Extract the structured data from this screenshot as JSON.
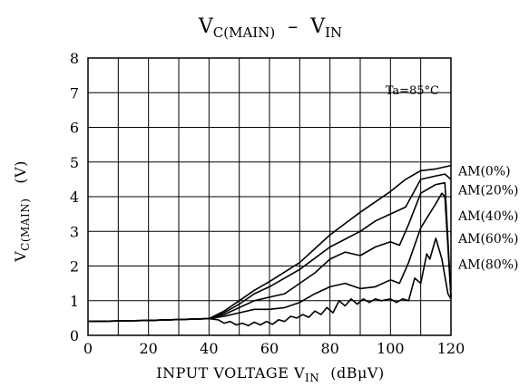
{
  "chart_data": {
    "type": "line",
    "title": {
      "main": "V",
      "main_sub": "C(MAIN)",
      "dash": "–",
      "second": "V",
      "second_sub": "IN"
    },
    "xlabel": {
      "main": "INPUT VOLTAGE V",
      "sub": "IN",
      "unit": "(dBμV)"
    },
    "ylabel": {
      "main": "V",
      "sub": "C(MAIN)",
      "unit": "(V)"
    },
    "annotation": "Ta=85°C",
    "xlim": [
      0,
      120
    ],
    "ylim": [
      0,
      8
    ],
    "xticks": [
      0,
      20,
      40,
      60,
      80,
      100,
      120
    ],
    "yticks": [
      0,
      1,
      2,
      3,
      4,
      5,
      6,
      7,
      8
    ],
    "grid": true,
    "series": [
      {
        "name": "AM(0%)",
        "points": [
          [
            0,
            0.4
          ],
          [
            20,
            0.43
          ],
          [
            40,
            0.48
          ],
          [
            45,
            0.7
          ],
          [
            50,
            1.0
          ],
          [
            55,
            1.3
          ],
          [
            60,
            1.55
          ],
          [
            70,
            2.1
          ],
          [
            80,
            2.9
          ],
          [
            90,
            3.55
          ],
          [
            100,
            4.15
          ],
          [
            105,
            4.5
          ],
          [
            110,
            4.75
          ],
          [
            115,
            4.8
          ],
          [
            120,
            4.9
          ]
        ]
      },
      {
        "name": "AM(20%)",
        "points": [
          [
            0,
            0.4
          ],
          [
            20,
            0.43
          ],
          [
            40,
            0.48
          ],
          [
            45,
            0.65
          ],
          [
            50,
            0.9
          ],
          [
            55,
            1.2
          ],
          [
            60,
            1.4
          ],
          [
            70,
            1.9
          ],
          [
            80,
            2.55
          ],
          [
            90,
            3.0
          ],
          [
            95,
            3.3
          ],
          [
            100,
            3.5
          ],
          [
            105,
            3.7
          ],
          [
            110,
            4.5
          ],
          [
            115,
            4.6
          ],
          [
            118,
            4.65
          ],
          [
            120,
            4.5
          ]
        ]
      },
      {
        "name": "AM(40%)",
        "points": [
          [
            0,
            0.4
          ],
          [
            20,
            0.43
          ],
          [
            40,
            0.48
          ],
          [
            45,
            0.6
          ],
          [
            50,
            0.8
          ],
          [
            55,
            1.0
          ],
          [
            60,
            1.1
          ],
          [
            65,
            1.2
          ],
          [
            70,
            1.5
          ],
          [
            75,
            1.8
          ],
          [
            80,
            2.2
          ],
          [
            85,
            2.4
          ],
          [
            90,
            2.3
          ],
          [
            95,
            2.55
          ],
          [
            100,
            2.7
          ],
          [
            103,
            2.6
          ],
          [
            106,
            3.2
          ],
          [
            110,
            4.1
          ],
          [
            115,
            4.35
          ],
          [
            118,
            4.4
          ],
          [
            120,
            1.1
          ]
        ]
      },
      {
        "name": "AM(60%)",
        "points": [
          [
            0,
            0.4
          ],
          [
            20,
            0.43
          ],
          [
            40,
            0.48
          ],
          [
            45,
            0.55
          ],
          [
            50,
            0.65
          ],
          [
            55,
            0.75
          ],
          [
            60,
            0.75
          ],
          [
            65,
            0.8
          ],
          [
            70,
            0.95
          ],
          [
            75,
            1.2
          ],
          [
            80,
            1.4
          ],
          [
            85,
            1.5
          ],
          [
            90,
            1.35
          ],
          [
            95,
            1.4
          ],
          [
            100,
            1.6
          ],
          [
            103,
            1.5
          ],
          [
            106,
            2.1
          ],
          [
            110,
            3.1
          ],
          [
            115,
            3.8
          ],
          [
            117,
            4.1
          ],
          [
            118,
            4.0
          ],
          [
            120,
            1.1
          ]
        ]
      },
      {
        "name": "AM(80%)",
        "points": [
          [
            0,
            0.4
          ],
          [
            20,
            0.43
          ],
          [
            40,
            0.48
          ],
          [
            43,
            0.45
          ],
          [
            45,
            0.35
          ],
          [
            47,
            0.4
          ],
          [
            49,
            0.3
          ],
          [
            51,
            0.35
          ],
          [
            53,
            0.28
          ],
          [
            55,
            0.38
          ],
          [
            57,
            0.3
          ],
          [
            59,
            0.4
          ],
          [
            61,
            0.32
          ],
          [
            63,
            0.45
          ],
          [
            65,
            0.4
          ],
          [
            67,
            0.55
          ],
          [
            69,
            0.5
          ],
          [
            71,
            0.6
          ],
          [
            73,
            0.52
          ],
          [
            75,
            0.7
          ],
          [
            77,
            0.6
          ],
          [
            79,
            0.8
          ],
          [
            81,
            0.65
          ],
          [
            83,
            1.0
          ],
          [
            85,
            0.85
          ],
          [
            87,
            1.05
          ],
          [
            89,
            0.9
          ],
          [
            91,
            1.05
          ],
          [
            93,
            0.95
          ],
          [
            95,
            1.05
          ],
          [
            97,
            1.0
          ],
          [
            100,
            1.05
          ],
          [
            102,
            0.95
          ],
          [
            104,
            1.05
          ],
          [
            106,
            1.0
          ],
          [
            108,
            1.65
          ],
          [
            110,
            1.5
          ],
          [
            112,
            2.35
          ],
          [
            113,
            2.2
          ],
          [
            115,
            2.8
          ],
          [
            117,
            2.2
          ],
          [
            119,
            1.2
          ],
          [
            120,
            1.05
          ]
        ]
      }
    ],
    "legend": "right-of-lines"
  }
}
